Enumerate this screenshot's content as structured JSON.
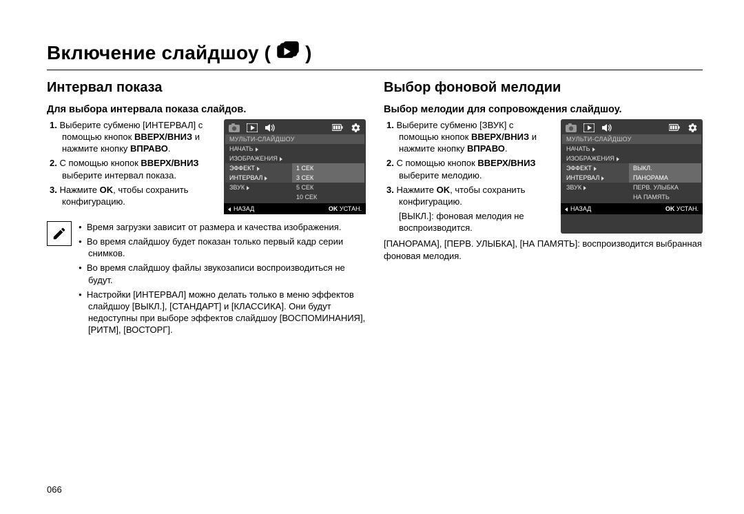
{
  "title": "Включение слайдшоу (",
  "title_close": ")",
  "page_number": "066",
  "left": {
    "heading": "Интервал показа",
    "subtitle": "Для выбора интервала показа слайдов.",
    "steps": [
      {
        "n": "1.",
        "html": "Выберите субменю [ИНТЕРВАЛ] с помощью кнопок <b>ВВЕРХ/ВНИЗ</b> и нажмите кнопку <b>ВПРАВО</b>."
      },
      {
        "n": "2.",
        "html": "С помощью кнопок <b>ВВЕРХ/ВНИЗ</b> выберите интервал показа."
      },
      {
        "n": "3.",
        "html": "Нажмите <b>OK</b>, чтобы сохранить конфигурацию."
      }
    ],
    "bullets": [
      "Время загрузки зависит от размера и качества изображения.",
      "Во время слайдшоу будет показан только первый кадр серии снимков.",
      "Во время слайдшоу файлы звукозаписи воспроизводиться не будут.",
      "Настройки [ИНТЕРВАЛ] можно делать только в меню эффектов слайдшоу [ВЫКЛ.], [СТАНДАРТ] и [КЛАССИКА]. Они будут недоступны при выборе эффектов слайдшоу [ВОСПОМИНАНИЯ], [РИТМ], [ВОСТОРГ]."
    ],
    "lcd": {
      "section": "МУЛЬТИ-СЛАЙДШОУ",
      "rows": [
        {
          "l": "НАЧАТЬ",
          "r": "",
          "hl": false,
          "tri": true
        },
        {
          "l": "ИЗОБРАЖЕНИЯ",
          "r": "",
          "hl": false,
          "tri": true
        },
        {
          "l": "ЭФФЕКТ",
          "r": "1 СЕК",
          "hl": true,
          "tri": true
        },
        {
          "l": "ИНТЕРВАЛ",
          "r": "3 СЕК",
          "hl": true,
          "tri": true
        },
        {
          "l": "ЗВУК",
          "r": "5 СЕК",
          "hl": false,
          "tri": true
        },
        {
          "l": "",
          "r": "10 СЕК",
          "hl": false,
          "tri": false
        }
      ],
      "back": "НАЗАД",
      "ok": "OK",
      "set": "УСТАН."
    }
  },
  "right": {
    "heading": "Выбор фоновой мелодии",
    "subtitle": "Выбор мелодии для сопровождения слайдшоу.",
    "steps": [
      {
        "n": "1.",
        "html": "Выберите субменю [ЗВУК] с помощью кнопок <b>ВВЕРХ/ВНИЗ</b> и нажмите кнопку <b>ВПРАВО</b>."
      },
      {
        "n": "2.",
        "html": "С помощью кнопок <b>ВВЕРХ/ВНИЗ</b> выберите мелодию."
      },
      {
        "n": "3.",
        "html": "Нажмите <b>OK</b>, чтобы сохранить конфигурацию."
      }
    ],
    "plain1_a": "[ВЫКЛ.]:",
    "plain1_b": "фоновая мелодия не воспроизводится.",
    "plain2": "[ПАНОРАМА], [ПЕРВ. УЛЫБКА], [НА ПАМЯТЬ]: воспроизводится выбранная фоновая мелодия.",
    "lcd": {
      "section": "МУЛЬТИ-СЛАЙДШОУ",
      "rows": [
        {
          "l": "НАЧАТЬ",
          "r": "",
          "hl": false,
          "tri": true
        },
        {
          "l": "ИЗОБРАЖЕНИЯ",
          "r": "",
          "hl": false,
          "tri": true
        },
        {
          "l": "ЭФФЕКТ",
          "r": "ВЫКЛ.",
          "hl": true,
          "tri": true
        },
        {
          "l": "ИНТЕРВАЛ",
          "r": "ПАНОРАМА",
          "hl": true,
          "tri": true
        },
        {
          "l": "ЗВУК",
          "r": "ПЕРВ. УЛЫБКА",
          "hl": false,
          "tri": true
        },
        {
          "l": "",
          "r": "НА ПАМЯТЬ",
          "hl": false,
          "tri": false
        }
      ],
      "back": "НАЗАД",
      "ok": "OK",
      "set": "УСТАН."
    }
  }
}
